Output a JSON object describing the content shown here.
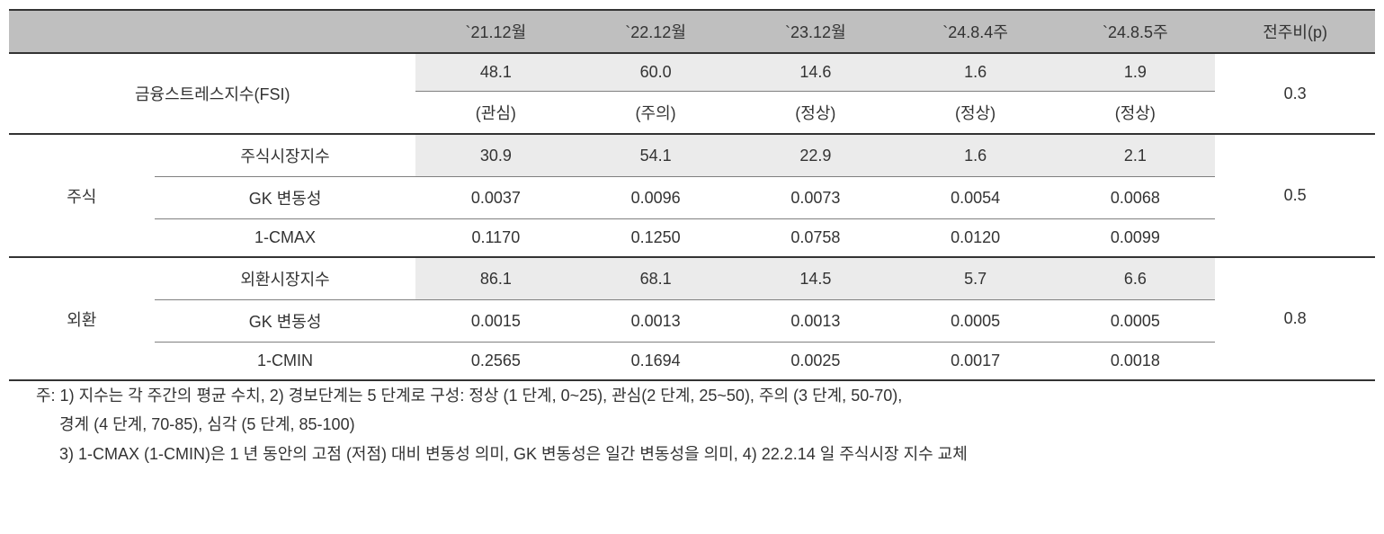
{
  "table": {
    "header_bg": "#bfbfbf",
    "shaded_bg": "#ebebeb",
    "border_color_heavy": "#333333",
    "border_color_light": "#808080",
    "columns": [
      "`21.12월",
      "`22.12월",
      "`23.12월",
      "`24.8.4주",
      "`24.8.5주",
      "전주비(p)"
    ],
    "fsi": {
      "label": "금융스트레스지수(FSI)",
      "values": [
        "48.1",
        "60.0",
        "14.6",
        "1.6",
        "1.9"
      ],
      "statuses": [
        "(관심)",
        "(주의)",
        "(정상)",
        "(정상)",
        "(정상)"
      ],
      "wow": "0.3"
    },
    "groups": [
      {
        "name": "주식",
        "wow": "0.5",
        "rows": [
          {
            "label": "주식시장지수",
            "vals": [
              "30.9",
              "54.1",
              "22.9",
              "1.6",
              "2.1"
            ],
            "shaded": true
          },
          {
            "label": "GK 변동성",
            "vals": [
              "0.0037",
              "0.0096",
              "0.0073",
              "0.0054",
              "0.0068"
            ],
            "shaded": false
          },
          {
            "label": "1-CMAX",
            "vals": [
              "0.1170",
              "0.1250",
              "0.0758",
              "0.0120",
              "0.0099"
            ],
            "shaded": false
          }
        ]
      },
      {
        "name": "외환",
        "wow": "0.8",
        "rows": [
          {
            "label": "외환시장지수",
            "vals": [
              "86.1",
              "68.1",
              "14.5",
              "5.7",
              "6.6"
            ],
            "shaded": true
          },
          {
            "label": "GK 변동성",
            "vals": [
              "0.0015",
              "0.0013",
              "0.0013",
              "0.0005",
              "0.0005"
            ],
            "shaded": false
          },
          {
            "label": "1-CMIN",
            "vals": [
              "0.2565",
              "0.1694",
              "0.0025",
              "0.0017",
              "0.0018"
            ],
            "shaded": false
          }
        ]
      }
    ]
  },
  "footnotes": {
    "line1": "주: 1) 지수는 각 주간의 평균 수치, 2) 경보단계는 5 단계로 구성: 정상 (1 단계, 0~25), 관심(2 단계, 25~50), 주의 (3 단계, 50-70),",
    "line2": "경계 (4 단계, 70-85), 심각 (5 단계, 85-100)",
    "line3": "3) 1-CMAX (1-CMIN)은 1 년 동안의 고점 (저점) 대비 변동성 의미, GK 변동성은 일간 변동성을 의미, 4) 22.2.14 일 주식시장 지수 교체"
  }
}
